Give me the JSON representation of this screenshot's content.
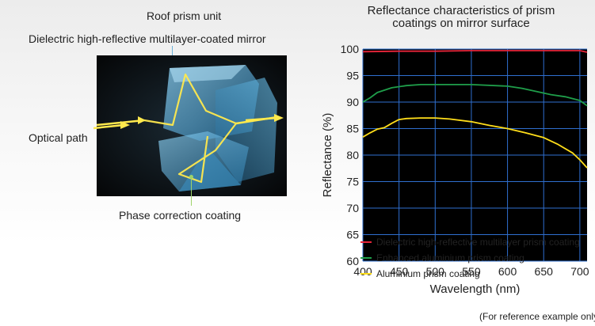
{
  "left_panel": {
    "title": "Roof prism unit",
    "mirror_label": "Dielectric high-reflective multilayer-coated mirror",
    "optical_path_label": "Optical path",
    "phase_label": "Phase correction coating"
  },
  "chart_data": {
    "type": "line",
    "title": "Reflectance characteristics of prism coatings on mirror surface",
    "title_lines": [
      "Reflectance characteristics of prism",
      "coatings on mirror surface"
    ],
    "xlabel": "Wavelength (nm)",
    "ylabel": "Reflectance (%)",
    "xlim": [
      400,
      710
    ],
    "ylim": [
      60,
      100
    ],
    "xticks": [
      400,
      450,
      500,
      550,
      600,
      650,
      700
    ],
    "yticks": [
      60,
      65,
      70,
      75,
      80,
      85,
      90,
      95,
      100
    ],
    "grid": true,
    "background": "#000000",
    "gridColor": "#2f6fd0",
    "legend_position": "bottom",
    "series": [
      {
        "name": "Dielectric high-reflective multilayer prism coating",
        "color": "#e8253a",
        "x": [
          400,
          450,
          500,
          550,
          600,
          650,
          700,
          710
        ],
        "y": [
          99.5,
          99.6,
          99.6,
          99.7,
          99.7,
          99.7,
          99.7,
          99.4
        ]
      },
      {
        "name": "Enhanced aluminium prism coating",
        "color": "#1f9e4a",
        "x": [
          400,
          410,
          420,
          440,
          460,
          480,
          500,
          550,
          600,
          620,
          640,
          660,
          680,
          700,
          710
        ],
        "y": [
          90,
          90.8,
          91.8,
          92.7,
          93.1,
          93.3,
          93.3,
          93.3,
          93.0,
          92.6,
          92.0,
          91.4,
          91.0,
          90.3,
          89.3
        ]
      },
      {
        "name": "Aluminium prism coating",
        "color": "#ffde1a",
        "x": [
          400,
          410,
          420,
          430,
          440,
          450,
          460,
          480,
          500,
          520,
          550,
          575,
          600,
          625,
          650,
          670,
          690,
          700,
          710
        ],
        "y": [
          83.4,
          84.2,
          84.9,
          85.2,
          86.0,
          86.7,
          86.9,
          87.0,
          87.0,
          86.8,
          86.3,
          85.6,
          85.0,
          84.2,
          83.3,
          82.0,
          80.4,
          79.1,
          77.6
        ]
      }
    ],
    "footnote": "(For reference example only)"
  }
}
